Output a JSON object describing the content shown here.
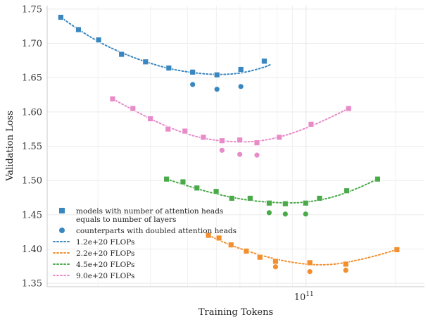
{
  "chart_data": {
    "type": "scatter",
    "xlabel": "Training Tokens",
    "ylabel": "Validation Loss",
    "x_scale": "log",
    "xlim": [
      13500000000,
      250000000000
    ],
    "ylim": [
      1.345,
      1.755
    ],
    "y_ticks": [
      "1.35",
      "1.40",
      "1.45",
      "1.50",
      "1.55",
      "1.60",
      "1.65",
      "1.70",
      "1.75"
    ],
    "x_ticks": [
      {
        "value": 100000000000,
        "label": "10",
        "exp": "11"
      }
    ],
    "grid": true,
    "legend_position": "lower-left",
    "series": [
      {
        "name": "1.2e+20 FLOPs",
        "color": "#3a87c0",
        "layers_heads": [
          [
            15000000000,
            1.738
          ],
          [
            17200000000,
            1.72
          ],
          [
            20100000000,
            1.705
          ],
          [
            24000000000,
            1.684
          ],
          [
            28900000000,
            1.673
          ],
          [
            34600000000,
            1.664
          ],
          [
            41600000000,
            1.658
          ],
          [
            50200000000,
            1.654
          ],
          [
            60400000000,
            1.662
          ],
          [
            72400000000,
            1.674
          ]
        ],
        "doubled_heads": [
          [
            41600000000,
            1.64
          ],
          [
            50200000000,
            1.633
          ],
          [
            60400000000,
            1.637
          ]
        ],
        "fit": [
          [
            15000000000,
            1.738
          ],
          [
            17200000000,
            1.72
          ],
          [
            20100000000,
            1.702
          ],
          [
            24000000000,
            1.686
          ],
          [
            28900000000,
            1.673
          ],
          [
            34600000000,
            1.663
          ],
          [
            41600000000,
            1.657
          ],
          [
            50200000000,
            1.654
          ],
          [
            60400000000,
            1.656
          ],
          [
            72400000000,
            1.665
          ],
          [
            76000000000,
            1.669
          ]
        ]
      },
      {
        "name": "2.2e+20 FLOPs",
        "color": "#f28f2f",
        "layers_heads": [
          [
            47000000000,
            1.42
          ],
          [
            51000000000,
            1.416
          ],
          [
            56000000000,
            1.406
          ],
          [
            63000000000,
            1.397
          ],
          [
            70000000000,
            1.388
          ],
          [
            79000000000,
            1.382
          ],
          [
            103000000000,
            1.38
          ],
          [
            136000000000,
            1.378
          ],
          [
            202000000000,
            1.399
          ]
        ],
        "doubled_heads": [
          [
            79000000000,
            1.374
          ],
          [
            103000000000,
            1.367
          ],
          [
            136000000000,
            1.369
          ]
        ],
        "fit": [
          [
            47000000000,
            1.42
          ],
          [
            56000000000,
            1.405
          ],
          [
            70000000000,
            1.391
          ],
          [
            85000000000,
            1.382
          ],
          [
            103000000000,
            1.377
          ],
          [
            120000000000,
            1.377
          ],
          [
            136000000000,
            1.38
          ],
          [
            165000000000,
            1.388
          ],
          [
            202000000000,
            1.399
          ]
        ]
      },
      {
        "name": "4.5e+20 FLOPs",
        "color": "#4aaa4a",
        "layers_heads": [
          [
            34000000000,
            1.502
          ],
          [
            38600000000,
            1.498
          ],
          [
            43000000000,
            1.489
          ],
          [
            49900000000,
            1.484
          ],
          [
            56300000000,
            1.474
          ],
          [
            64900000000,
            1.474
          ],
          [
            75200000000,
            1.467
          ],
          [
            85200000000,
            1.466
          ],
          [
            99700000000,
            1.467
          ],
          [
            111000000000,
            1.474
          ],
          [
            137000000000,
            1.485
          ],
          [
            174000000000,
            1.502
          ]
        ],
        "doubled_heads": [
          [
            75200000000,
            1.453
          ],
          [
            85200000000,
            1.451
          ],
          [
            99700000000,
            1.451
          ]
        ],
        "fit": [
          [
            34000000000,
            1.502
          ],
          [
            40000000000,
            1.492
          ],
          [
            48000000000,
            1.482
          ],
          [
            58000000000,
            1.474
          ],
          [
            70000000000,
            1.469
          ],
          [
            85000000000,
            1.467
          ],
          [
            100000000000,
            1.468
          ],
          [
            120000000000,
            1.474
          ],
          [
            145000000000,
            1.486
          ],
          [
            174000000000,
            1.502
          ]
        ]
      },
      {
        "name": "9.0e+20 FLOPs",
        "color": "#e88cc9",
        "layers_heads": [
          [
            22400000000,
            1.619
          ],
          [
            26200000000,
            1.605
          ],
          [
            30000000000,
            1.59
          ],
          [
            34400000000,
            1.575
          ],
          [
            39200000000,
            1.572
          ],
          [
            45200000000,
            1.563
          ],
          [
            52200000000,
            1.558
          ],
          [
            59900000000,
            1.559
          ],
          [
            68400000000,
            1.555
          ],
          [
            81300000000,
            1.563
          ],
          [
            104000000000,
            1.582
          ],
          [
            139000000000,
            1.605
          ]
        ],
        "doubled_heads": [
          [
            52200000000,
            1.544
          ],
          [
            59900000000,
            1.538
          ],
          [
            68400000000,
            1.537
          ]
        ],
        "fit": [
          [
            22400000000,
            1.619
          ],
          [
            27000000000,
            1.6
          ],
          [
            33000000000,
            1.581
          ],
          [
            40000000000,
            1.567
          ],
          [
            48000000000,
            1.559
          ],
          [
            58000000000,
            1.556
          ],
          [
            70000000000,
            1.557
          ],
          [
            85000000000,
            1.565
          ],
          [
            104000000000,
            1.579
          ],
          [
            125000000000,
            1.595
          ],
          [
            139000000000,
            1.605
          ]
        ]
      }
    ],
    "legend": [
      {
        "kind": "square",
        "label_lines": [
          "models with number of attention heads",
          "equals to number of layers"
        ]
      },
      {
        "kind": "circle",
        "label_lines": [
          "counterparts with doubled attention heads"
        ]
      },
      {
        "kind": "line",
        "series": 0,
        "label_lines": [
          "1.2e+20 FLOPs"
        ]
      },
      {
        "kind": "line",
        "series": 1,
        "label_lines": [
          "2.2e+20 FLOPs"
        ]
      },
      {
        "kind": "line",
        "series": 2,
        "label_lines": [
          "4.5e+20 FLOPs"
        ]
      },
      {
        "kind": "line",
        "series": 3,
        "label_lines": [
          "9.0e+20 FLOPs"
        ]
      }
    ],
    "legend_marker_color": "#3a87c0"
  }
}
